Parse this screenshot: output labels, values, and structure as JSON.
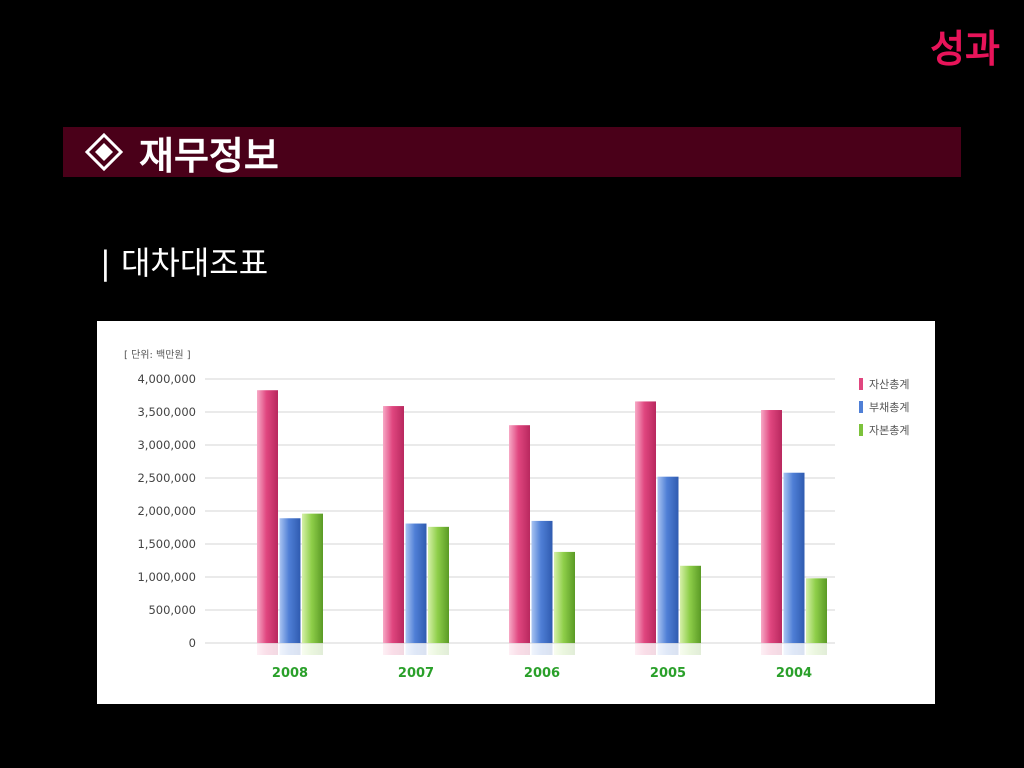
{
  "page": {
    "corner_title": "성과",
    "section_title": "재무정보",
    "section_icon": "diamond-icon",
    "subtitle": "| 대차대조표"
  },
  "colors": {
    "corner_title": "#e8145a",
    "banner_bg": "#4a0019",
    "series": [
      "#e0467f",
      "#4f7fd6",
      "#7cc23b"
    ],
    "category_label": "#2aa02a"
  },
  "chart_data": {
    "type": "bar",
    "unit_label": "[ 단위: 백만원 ]",
    "categories": [
      "2008",
      "2007",
      "2006",
      "2005",
      "2004"
    ],
    "series": [
      {
        "name": "자산총계",
        "values": [
          3830000,
          3590000,
          3300000,
          3660000,
          3530000
        ]
      },
      {
        "name": "부채총계",
        "values": [
          1890000,
          1810000,
          1850000,
          2520000,
          2580000
        ]
      },
      {
        "name": "자본총계",
        "values": [
          1960000,
          1760000,
          1380000,
          1170000,
          980000
        ]
      }
    ],
    "ylim": [
      0,
      4000000
    ],
    "yticks": [
      0,
      500000,
      1000000,
      1500000,
      2000000,
      2500000,
      3000000,
      3500000,
      4000000
    ],
    "ytick_labels": [
      "0",
      "500,000",
      "1,000,000",
      "1,500,000",
      "2,000,000",
      "2,500,000",
      "3,000,000",
      "3,500,000",
      "4,000,000"
    ],
    "grid": true,
    "legend_position": "top-right",
    "title": "",
    "xlabel": "",
    "ylabel": ""
  }
}
